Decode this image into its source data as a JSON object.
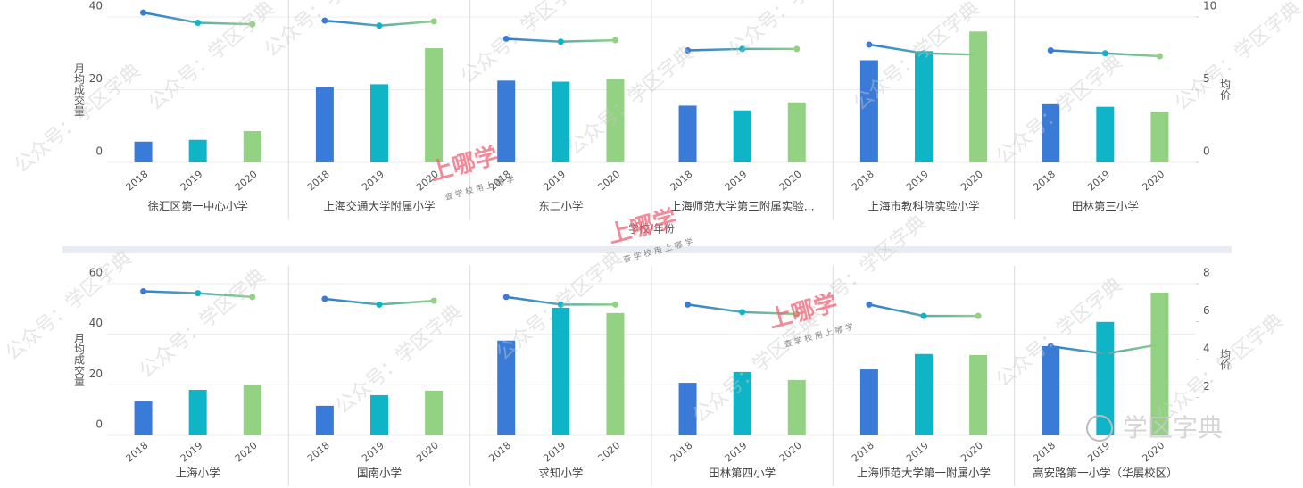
{
  "chart_data": [
    {
      "type": "bar-line",
      "y_label": "月均成交量",
      "y2_label": "均价",
      "x_label": "学校/年份",
      "ylim": [
        0,
        40
      ],
      "yticks": [
        0,
        20,
        40
      ],
      "y2lim": [
        0,
        10
      ],
      "y2ticks": [
        0,
        5,
        10
      ],
      "bar_colors": [
        "#3b7bd8",
        "#0fb4c6",
        "#92d282"
      ],
      "line_color": "#2a8fd0",
      "grid": true,
      "facets": [
        {
          "name": "徐汇区第一中心小学",
          "categories": [
            "2018",
            "2019",
            "2020"
          ],
          "series": [
            {
              "values": [
                5.7,
                6.2,
                8.6
              ]
            },
            {
              "axis": "y2",
              "values": [
                10.3,
                9.6,
                9.5
              ]
            }
          ]
        },
        {
          "name": "上海交通大学附属小学",
          "categories": [
            "2018",
            "2019",
            "2020"
          ],
          "series": [
            {
              "values": [
                20.7,
                21.5,
                31.4
              ]
            },
            {
              "axis": "y2",
              "values": [
                9.75,
                9.4,
                9.7
              ]
            }
          ]
        },
        {
          "name": "东二小学",
          "categories": [
            "2018",
            "2019",
            "2020"
          ],
          "series": [
            {
              "values": [
                22.5,
                22.2,
                23
              ]
            },
            {
              "axis": "y2",
              "values": [
                8.5,
                8.3,
                8.4
              ]
            }
          ]
        },
        {
          "name": "上海师范大学第三附属实验...",
          "categories": [
            "2018",
            "2019",
            "2020"
          ],
          "series": [
            {
              "values": [
                15.6,
                14.3,
                16.5
              ]
            },
            {
              "axis": "y2",
              "values": [
                7.7,
                7.8,
                7.8
              ]
            }
          ]
        },
        {
          "name": "上海市教科院实验小学",
          "categories": [
            "2018",
            "2019",
            "2020"
          ],
          "series": [
            {
              "values": [
                28.1,
                30.6,
                36
              ]
            },
            {
              "axis": "y2",
              "values": [
                8.1,
                7.5,
                7.4
              ]
            }
          ]
        },
        {
          "name": "田林第三小学",
          "categories": [
            "2018",
            "2019",
            "2020"
          ],
          "series": [
            {
              "values": [
                16,
                15.3,
                14
              ]
            },
            {
              "axis": "y2",
              "values": [
                7.7,
                7.5,
                7.3
              ]
            }
          ]
        }
      ]
    },
    {
      "type": "bar-line",
      "y_label": "月均成交量",
      "y2_label": "均价",
      "ylim": [
        0,
        60
      ],
      "yticks": [
        0,
        20,
        40,
        60
      ],
      "y2lim": [
        0,
        8
      ],
      "y2ticks": [
        2,
        4,
        6,
        8
      ],
      "bar_colors": [
        "#3b7bd8",
        "#0fb4c6",
        "#92d282"
      ],
      "line_color": "#2a8fd0",
      "grid": true,
      "facets": [
        {
          "name": "上海小学",
          "categories": [
            "2018",
            "2019",
            "2020"
          ],
          "series": [
            {
              "values": [
                13.4,
                18,
                19.8
              ]
            },
            {
              "axis": "y2",
              "values": [
                7.6,
                7.5,
                7.3
              ]
            }
          ]
        },
        {
          "name": "国南小学",
          "categories": [
            "2018",
            "2019",
            "2020"
          ],
          "series": [
            {
              "values": [
                11.7,
                15.9,
                17.7
              ]
            },
            {
              "axis": "y2",
              "values": [
                7.2,
                6.9,
                7.1
              ]
            }
          ]
        },
        {
          "name": "求知小学",
          "categories": [
            "2018",
            "2019",
            "2020"
          ],
          "series": [
            {
              "values": [
                37.5,
                50.5,
                48.4
              ]
            },
            {
              "axis": "y2",
              "values": [
                7.3,
                6.9,
                6.9
              ]
            }
          ]
        },
        {
          "name": "田林第四小学",
          "categories": [
            "2018",
            "2019",
            "2020"
          ],
          "series": [
            {
              "values": [
                20.8,
                25.1,
                21.9
              ]
            },
            {
              "axis": "y2",
              "values": [
                6.9,
                6.5,
                6.4
              ]
            }
          ]
        },
        {
          "name": "上海师范大学第一附属小学",
          "categories": [
            "2018",
            "2019",
            "2020"
          ],
          "series": [
            {
              "values": [
                26.1,
                32.2,
                31.8
              ]
            },
            {
              "axis": "y2",
              "values": [
                6.9,
                6.3,
                6.3
              ]
            }
          ]
        },
        {
          "name": "高安路第一小学（华展校区）",
          "categories": [
            "2018",
            "2019",
            "2020"
          ],
          "series": [
            {
              "values": [
                35.3,
                44.9,
                56.5
              ]
            },
            {
              "axis": "y2",
              "values": [
                4.7,
                4.3,
                4.8
              ]
            }
          ]
        }
      ]
    }
  ],
  "watermarks": [
    "公众号：学区字典",
    "上哪学",
    "查 学 校   用 上 哪 学",
    "学区字典"
  ]
}
